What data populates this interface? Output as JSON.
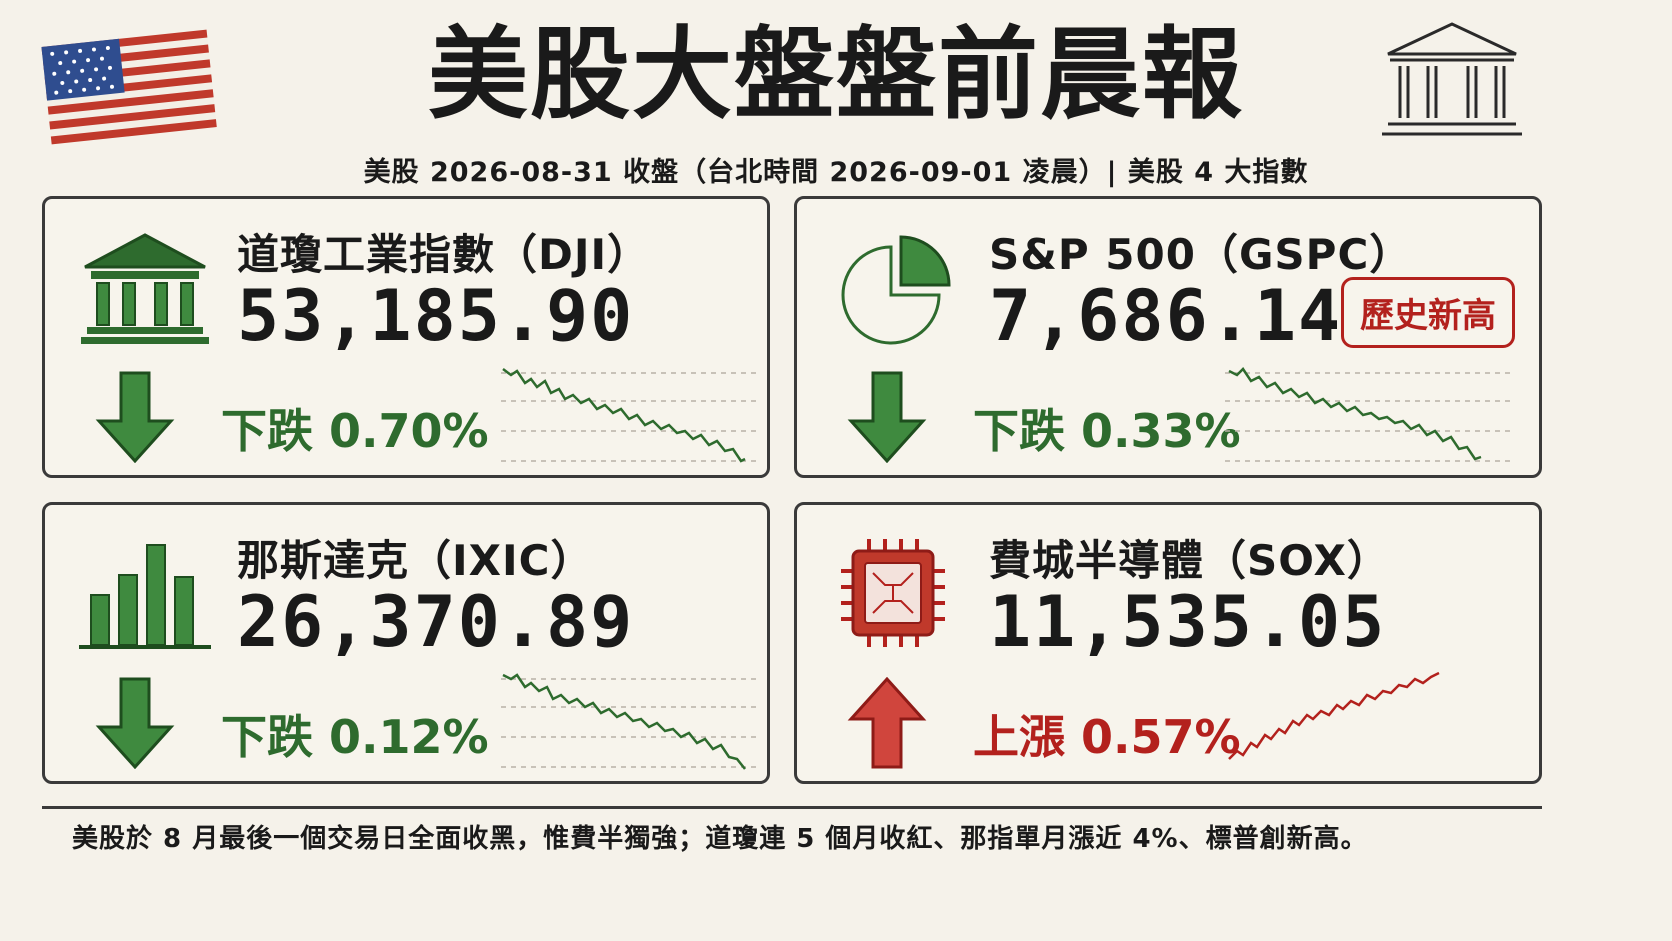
{
  "header": {
    "title": "美股大盤盤前晨報",
    "subtitle": "美股 2026-08-31 收盤（台北時間 2026-09-01 凌晨）| 美股 4 大指數",
    "left_icon": "us-flag-icon",
    "right_icon": "bank-building-icon"
  },
  "indices": [
    {
      "name": "道瓊工業指數（DJI）",
      "value": "53,185.90",
      "change": "下跌 0.70%",
      "direction": "down",
      "icon": "bank-building-icon"
    },
    {
      "name": "S&P 500（GSPC）",
      "value": "7,686.14",
      "change": "下跌 0.33%",
      "direction": "down",
      "icon": "pie-chart-icon",
      "badge": "歷史新高"
    },
    {
      "name": "那斯達克（IXIC）",
      "value": "26,370.89",
      "change": "下跌 0.12%",
      "direction": "down",
      "icon": "bar-chart-icon"
    },
    {
      "name": "費城半導體（SOX）",
      "value": "11,535.05",
      "change": "上漲 0.57%",
      "direction": "up",
      "icon": "chip-icon"
    }
  ],
  "footer": {
    "note": "美股於 8 月最後一個交易日全面收黑，惟費半獨強；道瓊連 5 個月收紅、那指單月漲近 4%、標普創新高。"
  },
  "colors": {
    "up": "#b3211d",
    "down": "#2e6b2e",
    "background": "#f5f2ea",
    "border": "#3a3a3a"
  }
}
